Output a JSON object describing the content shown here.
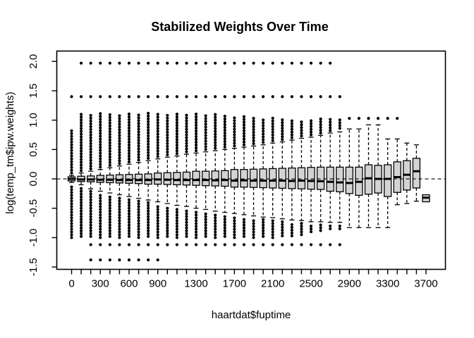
{
  "colors": {
    "background": "#ffffff",
    "stroke": "#000000",
    "box_fill": "#d3d3d3"
  },
  "chart_data": {
    "type": "boxplot",
    "title": "Stabilized Weights Over Time",
    "xlabel": "haartdat$fuptime",
    "ylabel": "log(temp_tm$ipw.weights)",
    "grid": false,
    "reference_line": {
      "y": 0,
      "style": "dashed"
    },
    "ylim": [
      -1.54,
      2.176
    ],
    "x_bin_step": 100,
    "y_ticks": [
      {
        "v": 2.0,
        "label": "2.0"
      },
      {
        "v": 1.5,
        "label": "1.5"
      },
      {
        "v": 1.0,
        "label": "1.0"
      },
      {
        "v": 0.5,
        "label": "0.5"
      },
      {
        "v": 0.0,
        "label": "0.0"
      },
      {
        "v": -0.5,
        "label": "-0.5"
      },
      {
        "v": -1.0,
        "label": "-1.0"
      },
      {
        "v": -1.5,
        "label": "-1.5"
      }
    ],
    "x_labeled_ticks": [
      {
        "v": 0,
        "label": "0"
      },
      {
        "v": 300,
        "label": "300"
      },
      {
        "v": 600,
        "label": "600"
      },
      {
        "v": 900,
        "label": "900"
      },
      {
        "v": 1300,
        "label": "1300"
      },
      {
        "v": 1700,
        "label": "1700"
      },
      {
        "v": 2100,
        "label": "2100"
      },
      {
        "v": 2500,
        "label": "2500"
      },
      {
        "v": 2900,
        "label": "2900"
      },
      {
        "v": 3300,
        "label": "3300"
      },
      {
        "v": 3700,
        "label": "3700"
      }
    ],
    "boxes": [
      {
        "x": 0,
        "q1": -0.035,
        "med": 0.0,
        "q3": 0.035,
        "wlo": -0.06,
        "whi": 0.06,
        "out_hi": [
          0.1,
          0.82
        ],
        "out_lo": [
          -0.1,
          -1.0
        ],
        "extra": [
          1.4
        ]
      },
      {
        "x": 100,
        "q1": -0.045,
        "med": -0.01,
        "q3": 0.045,
        "wlo": -0.1,
        "whi": 0.1,
        "out_hi": [
          0.14,
          1.1
        ],
        "out_lo": [
          -0.14,
          -0.98
        ],
        "extra": [
          1.4,
          1.97
        ]
      },
      {
        "x": 200,
        "q1": -0.05,
        "med": -0.01,
        "q3": 0.05,
        "wlo": -0.17,
        "whi": 0.13,
        "out_hi": [
          0.17,
          1.12
        ],
        "out_lo": [
          -0.21,
          -0.98
        ],
        "extra": [
          1.4,
          1.97,
          -1.12,
          -1.38
        ]
      },
      {
        "x": 300,
        "q1": -0.06,
        "med": -0.015,
        "q3": 0.06,
        "wlo": -0.21,
        "whi": 0.16,
        "out_hi": [
          0.2,
          1.12
        ],
        "out_lo": [
          -0.25,
          -1.0
        ],
        "extra": [
          1.4,
          1.97,
          -1.12,
          -1.38
        ]
      },
      {
        "x": 400,
        "q1": -0.065,
        "med": -0.015,
        "q3": 0.065,
        "wlo": -0.24,
        "whi": 0.19,
        "out_hi": [
          0.23,
          1.13
        ],
        "out_lo": [
          -0.28,
          -0.98
        ],
        "extra": [
          1.4,
          1.97,
          -1.12,
          -1.38
        ]
      },
      {
        "x": 500,
        "q1": -0.07,
        "med": -0.02,
        "q3": 0.07,
        "wlo": -0.27,
        "whi": 0.22,
        "out_hi": [
          0.26,
          1.12
        ],
        "out_lo": [
          -0.31,
          -1.0
        ],
        "extra": [
          1.4,
          1.97,
          -1.12,
          -1.38
        ]
      },
      {
        "x": 600,
        "q1": -0.075,
        "med": -0.02,
        "q3": 0.075,
        "wlo": -0.3,
        "whi": 0.25,
        "out_hi": [
          0.29,
          1.13
        ],
        "out_lo": [
          -0.34,
          -0.98
        ],
        "extra": [
          1.4,
          1.97,
          -1.12,
          -1.38
        ]
      },
      {
        "x": 700,
        "q1": -0.08,
        "med": -0.02,
        "q3": 0.08,
        "wlo": -0.33,
        "whi": 0.28,
        "out_hi": [
          0.32,
          1.12
        ],
        "out_lo": [
          -0.37,
          -1.0
        ],
        "extra": [
          1.4,
          1.97,
          -1.12,
          -1.38
        ]
      },
      {
        "x": 800,
        "q1": -0.09,
        "med": -0.02,
        "q3": 0.085,
        "wlo": -0.36,
        "whi": 0.31,
        "out_hi": [
          0.35,
          1.13
        ],
        "out_lo": [
          -0.4,
          -0.98
        ],
        "extra": [
          1.4,
          1.97,
          -1.12,
          -1.38
        ]
      },
      {
        "x": 900,
        "q1": -0.09,
        "med": -0.01,
        "q3": 0.1,
        "wlo": -0.39,
        "whi": 0.34,
        "out_hi": [
          0.38,
          1.12
        ],
        "out_lo": [
          -0.43,
          -1.0
        ],
        "extra": [
          1.4,
          1.97,
          -1.12,
          -1.38
        ]
      },
      {
        "x": 1000,
        "q1": -0.095,
        "med": -0.015,
        "q3": 0.105,
        "wlo": -0.42,
        "whi": 0.37,
        "out_hi": [
          0.41,
          1.12
        ],
        "out_lo": [
          -0.46,
          -0.98
        ],
        "extra": [
          1.4,
          1.97,
          -1.12
        ]
      },
      {
        "x": 1100,
        "q1": -0.1,
        "med": -0.02,
        "q3": 0.11,
        "wlo": -0.45,
        "whi": 0.39,
        "out_hi": [
          0.43,
          1.13
        ],
        "out_lo": [
          -0.49,
          -1.0
        ],
        "extra": [
          1.4,
          1.97,
          -1.12
        ]
      },
      {
        "x": 1200,
        "q1": -0.105,
        "med": -0.02,
        "q3": 0.115,
        "wlo": -0.47,
        "whi": 0.42,
        "out_hi": [
          0.46,
          1.12
        ],
        "out_lo": [
          -0.51,
          -0.98
        ],
        "extra": [
          1.4,
          1.97,
          -1.12
        ]
      },
      {
        "x": 1300,
        "q1": -0.11,
        "med": -0.02,
        "q3": 0.13,
        "wlo": -0.5,
        "whi": 0.44,
        "out_hi": [
          0.48,
          1.12
        ],
        "out_lo": [
          -0.54,
          -1.0
        ],
        "extra": [
          1.4,
          1.97,
          -1.12
        ]
      },
      {
        "x": 1400,
        "q1": -0.115,
        "med": -0.02,
        "q3": 0.13,
        "wlo": -0.52,
        "whi": 0.46,
        "out_hi": [
          0.5,
          1.1
        ],
        "out_lo": [
          -0.56,
          -0.98
        ],
        "extra": [
          1.4,
          1.97,
          -1.12
        ]
      },
      {
        "x": 1500,
        "q1": -0.12,
        "med": -0.025,
        "q3": 0.135,
        "wlo": -0.55,
        "whi": 0.48,
        "out_hi": [
          0.52,
          1.1
        ],
        "out_lo": [
          -0.59,
          -1.0
        ],
        "extra": [
          1.4,
          1.97,
          -1.12
        ]
      },
      {
        "x": 1600,
        "q1": -0.125,
        "med": -0.02,
        "q3": 0.14,
        "wlo": -0.57,
        "whi": 0.5,
        "out_hi": [
          0.54,
          1.08
        ],
        "out_lo": [
          -0.61,
          -0.98
        ],
        "extra": [
          1.4,
          1.97,
          -1.12
        ]
      },
      {
        "x": 1700,
        "q1": -0.14,
        "med": -0.03,
        "q3": 0.16,
        "wlo": -0.59,
        "whi": 0.52,
        "out_hi": [
          0.56,
          1.08
        ],
        "out_lo": [
          -0.63,
          -1.0
        ],
        "extra": [
          1.4,
          1.97,
          -1.12
        ]
      },
      {
        "x": 1800,
        "q1": -0.14,
        "med": -0.025,
        "q3": 0.16,
        "wlo": -0.61,
        "whi": 0.54,
        "out_hi": [
          0.58,
          1.06
        ],
        "out_lo": [
          -0.65,
          -0.98
        ],
        "extra": [
          1.4,
          1.97,
          -1.12
        ]
      },
      {
        "x": 1900,
        "q1": -0.145,
        "med": -0.03,
        "q3": 0.165,
        "wlo": -0.63,
        "whi": 0.56,
        "out_hi": [
          0.6,
          1.06
        ],
        "out_lo": [
          -0.67,
          -1.0
        ],
        "extra": [
          1.4,
          1.97,
          -1.12
        ]
      },
      {
        "x": 2000,
        "q1": -0.15,
        "med": -0.03,
        "q3": 0.17,
        "wlo": -0.65,
        "whi": 0.58,
        "out_hi": [
          0.62,
          1.04
        ],
        "out_lo": [
          -0.69,
          -0.98
        ],
        "extra": [
          1.4,
          1.97,
          -1.12
        ]
      },
      {
        "x": 2100,
        "q1": -0.155,
        "med": -0.03,
        "q3": 0.175,
        "wlo": -0.66,
        "whi": 0.61,
        "out_hi": [
          0.65,
          1.04
        ],
        "out_lo": [
          -0.7,
          -1.0
        ],
        "extra": [
          1.4,
          1.97,
          -1.12
        ]
      },
      {
        "x": 2200,
        "q1": -0.16,
        "med": -0.03,
        "q3": 0.18,
        "wlo": -0.68,
        "whi": 0.63,
        "out_hi": [
          0.67,
          1.02
        ],
        "out_lo": [
          -0.72,
          -0.97
        ],
        "extra": [
          1.4,
          1.97,
          -1.12
        ]
      },
      {
        "x": 2300,
        "q1": -0.165,
        "med": -0.035,
        "q3": 0.185,
        "wlo": -0.7,
        "whi": 0.66,
        "out_hi": [
          0.7,
          1.02
        ],
        "out_lo": [
          -0.74,
          -0.97
        ],
        "extra": [
          1.4,
          1.97,
          -1.12
        ]
      },
      {
        "x": 2400,
        "q1": -0.17,
        "med": -0.03,
        "q3": 0.19,
        "wlo": -0.71,
        "whi": 0.69,
        "out_hi": [
          0.73,
          1.0
        ],
        "out_lo": [
          -0.75,
          -0.95
        ],
        "extra": [
          1.4,
          1.97,
          -1.12
        ]
      },
      {
        "x": 2500,
        "q1": -0.175,
        "med": -0.035,
        "q3": 0.195,
        "wlo": -0.73,
        "whi": 0.71,
        "out_hi": [
          0.75,
          1.03
        ],
        "out_lo": [
          -0.77,
          -0.9
        ],
        "extra": [
          1.4,
          1.97,
          -1.12
        ]
      },
      {
        "x": 2600,
        "q1": -0.18,
        "med": -0.04,
        "q3": 0.2,
        "wlo": -0.73,
        "whi": 0.74,
        "out_hi": [
          0.78,
          1.03
        ],
        "out_lo": [
          -0.77,
          -0.88
        ],
        "extra": [
          1.4,
          1.97,
          -1.12
        ]
      },
      {
        "x": 2700,
        "q1": -0.21,
        "med": -0.05,
        "q3": 0.2,
        "wlo": -0.74,
        "whi": 0.78,
        "out_hi": [
          0.82,
          1.03
        ],
        "out_lo": [
          -0.78,
          -0.85
        ],
        "extra": [
          1.4,
          1.97,
          -1.12
        ]
      },
      {
        "x": 2800,
        "q1": -0.22,
        "med": -0.06,
        "q3": 0.2,
        "wlo": -0.74,
        "whi": 0.8,
        "out_hi": [
          0.86,
          1.03
        ],
        "out_lo": [
          -0.79,
          -0.85
        ],
        "extra": [
          1.4,
          -1.12
        ]
      },
      {
        "x": 2900,
        "q1": -0.25,
        "med": -0.07,
        "q3": 0.2,
        "wlo": -0.83,
        "whi": 0.85,
        "out_hi": null,
        "out_lo": null,
        "extra": [
          1.03
        ]
      },
      {
        "x": 3000,
        "q1": -0.28,
        "med": -0.05,
        "q3": 0.2,
        "wlo": -0.83,
        "whi": 0.85,
        "out_hi": null,
        "out_lo": null,
        "extra": [
          1.03
        ]
      },
      {
        "x": 3100,
        "q1": -0.26,
        "med": 0.01,
        "q3": 0.24,
        "wlo": -0.83,
        "whi": 0.92,
        "out_hi": null,
        "out_lo": null,
        "extra": [
          1.03
        ]
      },
      {
        "x": 3200,
        "q1": -0.24,
        "med": 0.0,
        "q3": 0.23,
        "wlo": -0.83,
        "whi": 0.92,
        "out_hi": null,
        "out_lo": null,
        "extra": [
          1.03
        ]
      },
      {
        "x": 3300,
        "q1": -0.3,
        "med": 0.0,
        "q3": 0.24,
        "wlo": -0.83,
        "whi": 0.68,
        "out_hi": null,
        "out_lo": null,
        "extra": [
          1.03
        ]
      },
      {
        "x": 3400,
        "q1": -0.23,
        "med": 0.03,
        "q3": 0.29,
        "wlo": -0.44,
        "whi": 0.68,
        "out_hi": null,
        "out_lo": null,
        "extra": [
          1.03
        ]
      },
      {
        "x": 3500,
        "q1": -0.19,
        "med": 0.07,
        "q3": 0.31,
        "wlo": -0.42,
        "whi": 0.61,
        "out_hi": null,
        "out_lo": null,
        "extra": []
      },
      {
        "x": 3600,
        "q1": -0.155,
        "med": 0.13,
        "q3": 0.35,
        "wlo": -0.38,
        "whi": 0.58,
        "out_hi": null,
        "out_lo": null,
        "extra": []
      },
      {
        "x": 3700,
        "q1": -0.39,
        "med": -0.32,
        "q3": -0.27,
        "wlo": -0.39,
        "whi": -0.27,
        "out_hi": null,
        "out_lo": null,
        "extra": []
      }
    ]
  }
}
